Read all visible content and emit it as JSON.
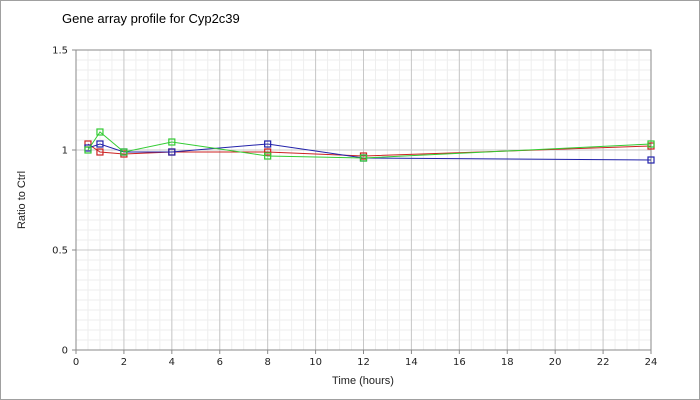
{
  "chart_data": {
    "type": "line",
    "title": "Gene array profile for Cyp2c39",
    "xlabel": "Time (hours)",
    "ylabel": "Ratio to Ctrl",
    "xlim": [
      0,
      24
    ],
    "ylim": [
      0,
      1.5
    ],
    "x_ticks": [
      "0",
      "2",
      "4",
      "6",
      "8",
      "10",
      "12",
      "14",
      "16",
      "18",
      "20",
      "22",
      "24"
    ],
    "y_ticks": [
      "0",
      "0.5",
      "1",
      "1.5"
    ],
    "grid": true,
    "legend": "none",
    "series": [
      {
        "color": "#cc2222",
        "marker": "square",
        "x": [
          0.5,
          1,
          2,
          4,
          8,
          12,
          24
        ],
        "y": [
          1.03,
          0.99,
          0.98,
          0.99,
          0.99,
          0.97,
          1.02
        ]
      },
      {
        "color": "#2222aa",
        "marker": "square",
        "x": [
          0.5,
          1,
          2,
          4,
          8,
          12,
          24
        ],
        "y": [
          1.01,
          1.03,
          0.99,
          0.99,
          1.03,
          0.96,
          0.95
        ]
      },
      {
        "color": "#33cc33",
        "marker": "square",
        "x": [
          0.5,
          1,
          2,
          4,
          8,
          12,
          24
        ],
        "y": [
          1.0,
          1.09,
          0.99,
          1.04,
          0.97,
          0.96,
          1.03
        ]
      }
    ]
  }
}
